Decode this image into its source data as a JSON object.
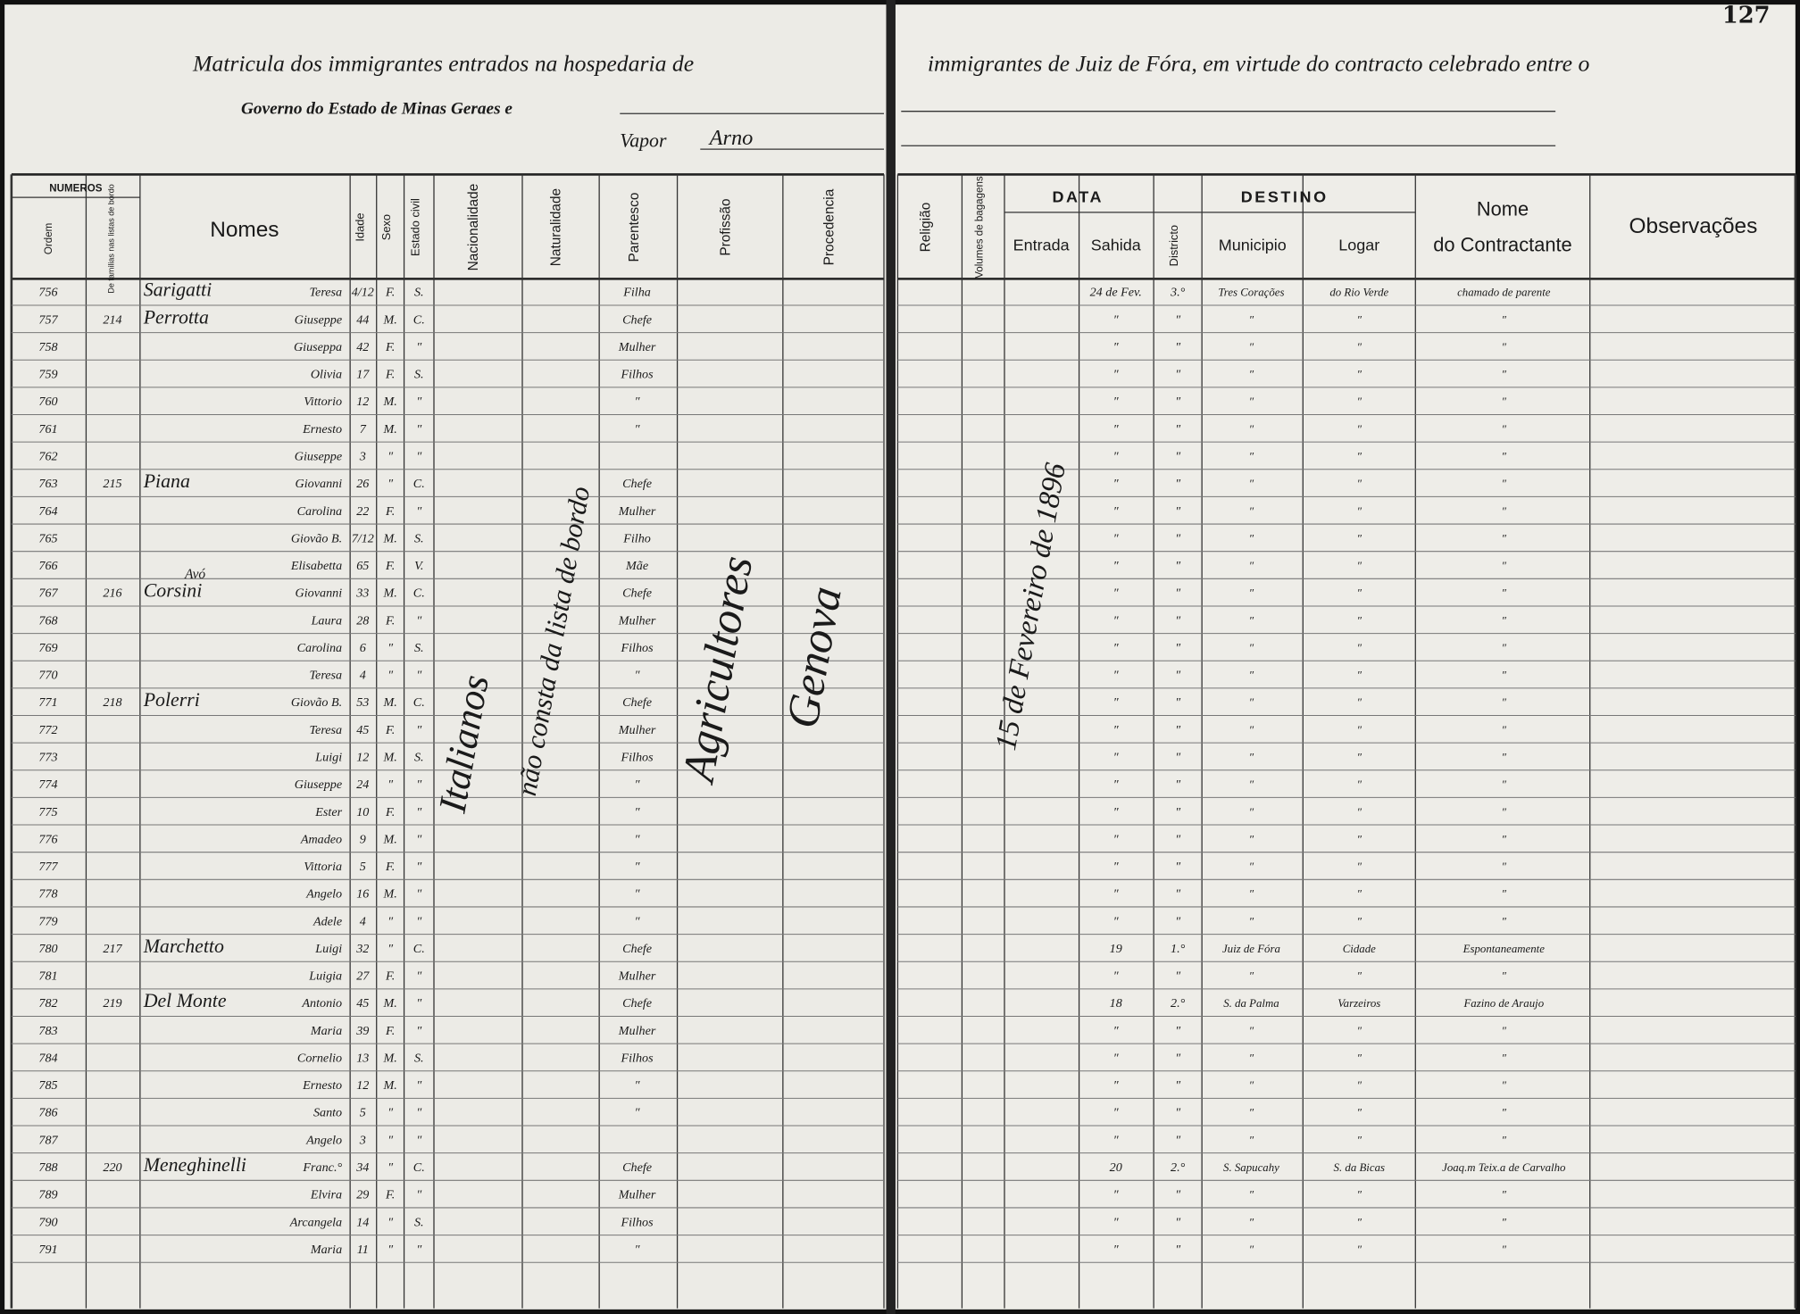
{
  "header": {
    "page_number": "127",
    "title_left": "Matricula dos immigrantes entrados na hospedaria de",
    "title_right": "immigrantes de Juiz de Fóra, em virtude do contracto celebrado entre o",
    "subtitle": "Governo do Estado de Minas Geraes e",
    "vapor_label": "Vapor",
    "vapor_name": "Arno"
  },
  "columns": {
    "numeros": "NUMEROS",
    "ordem": "Ordem",
    "familias": "De familias nas listas de bordo",
    "nomes": "Nomes",
    "idade": "Idade",
    "sexo": "Sexo",
    "estado_civil": "Estado civil",
    "nacionalidade": "Nacionalidade",
    "naturalidade": "Naturalidade",
    "parentesco": "Parentesco",
    "profissao": "Profissão",
    "procedencia": "Procedencia",
    "religiao": "Religião",
    "volumes": "Volumes de bagagens",
    "data": "DATA",
    "entrada": "Entrada",
    "sahida": "Sahida",
    "destino": "DESTINO",
    "districto": "Districto",
    "municipio": "Municipio",
    "logar": "Logar",
    "nome": "Nome",
    "contractante": "do Contractante",
    "observacoes": "Observações"
  },
  "annotations": {
    "nacionalidade": "Italianos",
    "naturalidade": "não consta da lista de bordo",
    "profissao": "Agricultores",
    "procedencia": "Genova",
    "entrada": "15 de Fevereiro de 1896",
    "note": "Avó"
  },
  "rows": [
    [
      "756",
      null,
      "Sarigatti",
      "Teresa",
      "4/12",
      "F.",
      "S.",
      "Filha",
      "24 de Fev.",
      "3.°",
      "Tres Corações",
      "do Rio Verde",
      "chamado de parente"
    ],
    [
      "757",
      "214",
      "Perrotta",
      "Giuseppe",
      "44",
      "M.",
      "C.",
      "Chefe",
      "″",
      "″",
      "″",
      "″",
      "″"
    ],
    [
      "758",
      null,
      null,
      "Giuseppa",
      "42",
      "F.",
      "″",
      "Mulher",
      "″",
      "″",
      "″",
      "″",
      "″"
    ],
    [
      "759",
      null,
      null,
      "Olivia",
      "17",
      "F.",
      "S.",
      "Filhos",
      "″",
      "″",
      "″",
      "″",
      "″"
    ],
    [
      "760",
      null,
      null,
      "Vittorio",
      "12",
      "M.",
      "″",
      "″",
      "″",
      "″",
      "″",
      "″",
      "″"
    ],
    [
      "761",
      null,
      null,
      "Ernesto",
      "7",
      "M.",
      "″",
      "″",
      "″",
      "″",
      "″",
      "″",
      "″"
    ],
    [
      "762",
      null,
      null,
      "Giuseppe",
      "3",
      "″",
      "″",
      null,
      "″",
      "″",
      "″",
      "″",
      "″"
    ],
    [
      "763",
      "215",
      "Piana",
      "Giovanni",
      "26",
      "″",
      "C.",
      "Chefe",
      "″",
      "″",
      "″",
      "″",
      "″"
    ],
    [
      "764",
      null,
      null,
      "Carolina",
      "22",
      "F.",
      "″",
      "Mulher",
      "″",
      "″",
      "″",
      "″",
      "″"
    ],
    [
      "765",
      null,
      null,
      "Giovão B.",
      "7/12",
      "M.",
      "S.",
      "Filho",
      "″",
      "″",
      "″",
      "″",
      "″"
    ],
    [
      "766",
      null,
      null,
      "Elisabetta",
      "65",
      "F.",
      "V.",
      "Mãe",
      "″",
      "″",
      "″",
      "″",
      "″"
    ],
    [
      "767",
      "216",
      "Corsini",
      "Giovanni",
      "33",
      "M.",
      "C.",
      "Chefe",
      "″",
      "″",
      "″",
      "″",
      "″"
    ],
    [
      "768",
      null,
      null,
      "Laura",
      "28",
      "F.",
      "″",
      "Mulher",
      "″",
      "″",
      "″",
      "″",
      "″"
    ],
    [
      "769",
      null,
      null,
      "Carolina",
      "6",
      "″",
      "S.",
      "Filhos",
      "″",
      "″",
      "″",
      "″",
      "″"
    ],
    [
      "770",
      null,
      null,
      "Teresa",
      "4",
      "″",
      "″",
      "″",
      "″",
      "″",
      "″",
      "″",
      "″"
    ],
    [
      "771",
      "218",
      "Polerri",
      "Giovão B.",
      "53",
      "M.",
      "C.",
      "Chefe",
      "″",
      "″",
      "″",
      "″",
      "″"
    ],
    [
      "772",
      null,
      null,
      "Teresa",
      "45",
      "F.",
      "″",
      "Mulher",
      "″",
      "″",
      "″",
      "″",
      "″"
    ],
    [
      "773",
      null,
      null,
      "Luigi",
      "12",
      "M.",
      "S.",
      "Filhos",
      "″",
      "″",
      "″",
      "″",
      "″"
    ],
    [
      "774",
      null,
      null,
      "Giuseppe",
      "24",
      "″",
      "″",
      "″",
      "″",
      "″",
      "″",
      "″",
      "″"
    ],
    [
      "775",
      null,
      null,
      "Ester",
      "10",
      "F.",
      "″",
      "″",
      "″",
      "″",
      "″",
      "″",
      "″"
    ],
    [
      "776",
      null,
      null,
      "Amadeo",
      "9",
      "M.",
      "″",
      "″",
      "″",
      "″",
      "″",
      "″",
      "″"
    ],
    [
      "777",
      null,
      null,
      "Vittoria",
      "5",
      "F.",
      "″",
      "″",
      "″",
      "″",
      "″",
      "″",
      "″"
    ],
    [
      "778",
      null,
      null,
      "Angelo",
      "16",
      "M.",
      "″",
      "″",
      "″",
      "″",
      "″",
      "″",
      "″"
    ],
    [
      "779",
      null,
      null,
      "Adele",
      "4",
      "″",
      "″",
      "″",
      "″",
      "″",
      "″",
      "″",
      "″"
    ],
    [
      "780",
      "217",
      "Marchetto",
      "Luigi",
      "32",
      "″",
      "C.",
      "Chefe",
      "19",
      "1.°",
      "Juiz de Fóra",
      "Cidade",
      "Espontaneamente"
    ],
    [
      "781",
      null,
      null,
      "Luigia",
      "27",
      "F.",
      "″",
      "Mulher",
      "″",
      "″",
      "″",
      "″",
      "″"
    ],
    [
      "782",
      "219",
      "Del Monte",
      "Antonio",
      "45",
      "M.",
      "″",
      "Chefe",
      "18",
      "2.°",
      "S. da Palma",
      "Varzeiros",
      "Fazino de Araujo"
    ],
    [
      "783",
      null,
      null,
      "Maria",
      "39",
      "F.",
      "″",
      "Mulher",
      "″",
      "″",
      "″",
      "″",
      "″"
    ],
    [
      "784",
      null,
      null,
      "Cornelio",
      "13",
      "M.",
      "S.",
      "Filhos",
      "″",
      "″",
      "″",
      "″",
      "″"
    ],
    [
      "785",
      null,
      null,
      "Ernesto",
      "12",
      "M.",
      "″",
      "″",
      "″",
      "″",
      "″",
      "″",
      "″"
    ],
    [
      "786",
      null,
      null,
      "Santo",
      "5",
      "″",
      "″",
      "″",
      "″",
      "″",
      "″",
      "″",
      "″"
    ],
    [
      "787",
      null,
      null,
      "Angelo",
      "3",
      "″",
      "″",
      null,
      "″",
      "″",
      "″",
      "″",
      "″"
    ],
    [
      "788",
      "220",
      "Meneghinelli",
      "Franc.°",
      "34",
      "″",
      "C.",
      "Chefe",
      "20",
      "2.°",
      "S. Sapucahy",
      "S. da Bicas",
      "Joaq.m Teix.a de Carvalho"
    ],
    [
      "789",
      null,
      null,
      "Elvira",
      "29",
      "F.",
      "″",
      "Mulher",
      "″",
      "″",
      "″",
      "″",
      "″"
    ],
    [
      "790",
      null,
      null,
      "Arcangela",
      "14",
      "″",
      "S.",
      "Filhos",
      "″",
      "″",
      "″",
      "″",
      "″"
    ],
    [
      "791",
      null,
      null,
      "Maria",
      "11",
      "″",
      "″",
      "″",
      "″",
      "″",
      "″",
      "″",
      "″"
    ]
  ]
}
